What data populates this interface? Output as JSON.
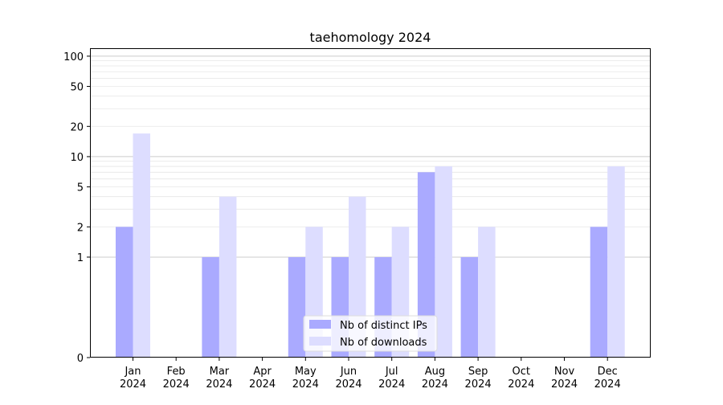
{
  "chart_data": {
    "type": "bar",
    "title": "taehomology 2024",
    "categories": [
      {
        "month": "Jan",
        "year": "2024"
      },
      {
        "month": "Feb",
        "year": "2024"
      },
      {
        "month": "Mar",
        "year": "2024"
      },
      {
        "month": "Apr",
        "year": "2024"
      },
      {
        "month": "May",
        "year": "2024"
      },
      {
        "month": "Jun",
        "year": "2024"
      },
      {
        "month": "Jul",
        "year": "2024"
      },
      {
        "month": "Aug",
        "year": "2024"
      },
      {
        "month": "Sep",
        "year": "2024"
      },
      {
        "month": "Oct",
        "year": "2024"
      },
      {
        "month": "Nov",
        "year": "2024"
      },
      {
        "month": "Dec",
        "year": "2024"
      }
    ],
    "series": [
      {
        "name": "Nb of distinct IPs",
        "color": "#aaaaff",
        "values": [
          2,
          0,
          1,
          0,
          1,
          1,
          1,
          7,
          1,
          0,
          0,
          2
        ]
      },
      {
        "name": "Nb of downloads",
        "color": "#ddddff",
        "values": [
          17,
          0,
          4,
          0,
          2,
          4,
          2,
          8,
          2,
          0,
          0,
          8
        ]
      }
    ],
    "y_scale": "symlog",
    "y_ticks": [
      0,
      1,
      2,
      5,
      10,
      20,
      50,
      100
    ],
    "ylim": [
      0,
      120
    ],
    "xlabel": "",
    "ylabel": "",
    "grid": true,
    "legend_position": "lower center"
  }
}
